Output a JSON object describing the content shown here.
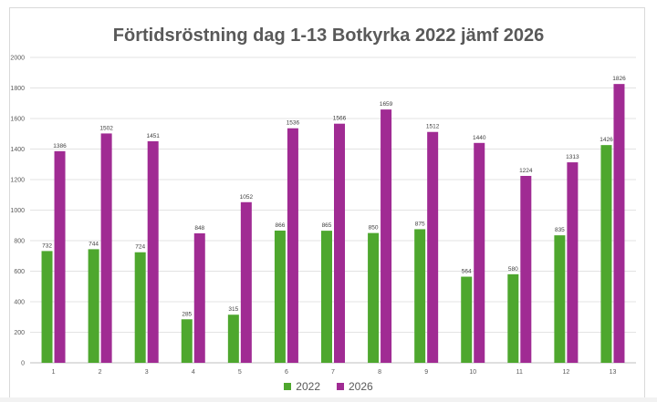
{
  "chart_data": {
    "type": "bar",
    "title": "Förtidsröstning dag 1-13 Botkyrka 2022 jämf 2026",
    "xlabel": "",
    "ylabel": "",
    "ylim": [
      0,
      2000
    ],
    "yticks": [
      0,
      200,
      400,
      600,
      800,
      1000,
      1200,
      1400,
      1600,
      1800,
      2000
    ],
    "grid": true,
    "legend_position": "bottom",
    "categories": [
      "1",
      "2",
      "3",
      "4",
      "5",
      "6",
      "7",
      "8",
      "9",
      "10",
      "11",
      "12",
      "13"
    ],
    "series": [
      {
        "name": "2022",
        "color": "#4ea72e",
        "values": [
          732,
          744,
          724,
          285,
          315,
          866,
          865,
          850,
          875,
          564,
          580,
          835,
          1426
        ]
      },
      {
        "name": "2026",
        "color": "#a02b93",
        "values": [
          1386,
          1502,
          1451,
          848,
          1052,
          1536,
          1566,
          1659,
          1512,
          1440,
          1224,
          1313,
          1826
        ]
      }
    ]
  }
}
